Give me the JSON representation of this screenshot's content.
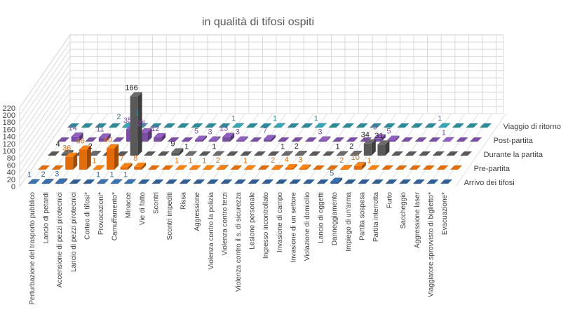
{
  "chart_data": {
    "type": "bar3d",
    "title": "in qualità di tifosi ospiti",
    "ylim": [
      0,
      220
    ],
    "yticks": [
      0,
      20,
      40,
      60,
      80,
      100,
      120,
      140,
      160,
      180,
      200,
      220
    ],
    "grid": true,
    "legend": "right (series names at row ends)",
    "categories": [
      "Perturbazione del trasporto pubblico",
      "Lancio di petardi",
      "Accensione di pezzi pirotecnici",
      "Lancio di pezzi pirotecnici",
      "Corteo di tifosi*",
      "Provocazioni*",
      "Camuffamento*",
      "Minacce",
      "Vie di fatto",
      "Scontri",
      "Scontri impediti",
      "Rissa",
      "Aggressione",
      "Violenza contro la polizia",
      "Violenza contro terzi",
      "Violenza contro il s. di sicurezza",
      "Lesione personale",
      "Ingresso incontrollato",
      "Invasione di campo",
      "Invasione di un settore",
      "Violazione di domicilio",
      "Lancio di oggetti",
      "Danneggiamento",
      "Impiego di un'arma",
      "Partita sospesa",
      "Partita interrotta",
      "Furto",
      "Saccheggio",
      "Aggressione laser",
      "Viaggiatore sprovvisto di biglietto*",
      "Evacuazione*"
    ],
    "series": [
      {
        "name": "Arrivo dei tifosi",
        "color": "#2e5f96",
        "values": [
          1,
          2,
          3,
          null,
          null,
          1,
          1,
          1,
          null,
          null,
          null,
          null,
          null,
          null,
          null,
          null,
          null,
          null,
          null,
          null,
          null,
          null,
          5,
          null,
          null,
          null,
          null,
          null,
          null,
          null,
          null
        ]
      },
      {
        "name": "Pre-partita",
        "color": "#e36c0a",
        "values": [
          null,
          null,
          36,
          56,
          1,
          60,
          7,
          8,
          null,
          null,
          1,
          1,
          1,
          2,
          null,
          1,
          null,
          2,
          4,
          3,
          null,
          null,
          2,
          10,
          1,
          null,
          null,
          null,
          null,
          null,
          null
        ]
      },
      {
        "name": "Durante la partita",
        "color": "#595959",
        "values": [
          null,
          4,
          null,
          2,
          null,
          null,
          166,
          null,
          null,
          9,
          1,
          null,
          1,
          null,
          null,
          null,
          null,
          1,
          2,
          null,
          null,
          1,
          2,
          34,
          31,
          null,
          null,
          null,
          null,
          null,
          null
        ]
      },
      {
        "name": "Post-partita",
        "color": "#7a4fa3",
        "values": [
          null,
          14,
          null,
          11,
          null,
          35,
          26,
          12,
          null,
          null,
          5,
          3,
          13,
          3,
          null,
          7,
          null,
          null,
          null,
          3,
          null,
          null,
          null,
          9,
          5,
          null,
          null,
          null,
          1,
          null,
          null
        ]
      },
      {
        "name": "Viaggio di ritorno",
        "color": "#2b8a9a",
        "values": [
          null,
          null,
          null,
          null,
          2,
          1,
          null,
          null,
          null,
          null,
          null,
          null,
          1,
          null,
          null,
          1,
          null,
          null,
          1,
          null,
          null,
          null,
          null,
          null,
          null,
          null,
          null,
          1,
          null,
          null,
          null
        ]
      }
    ]
  }
}
